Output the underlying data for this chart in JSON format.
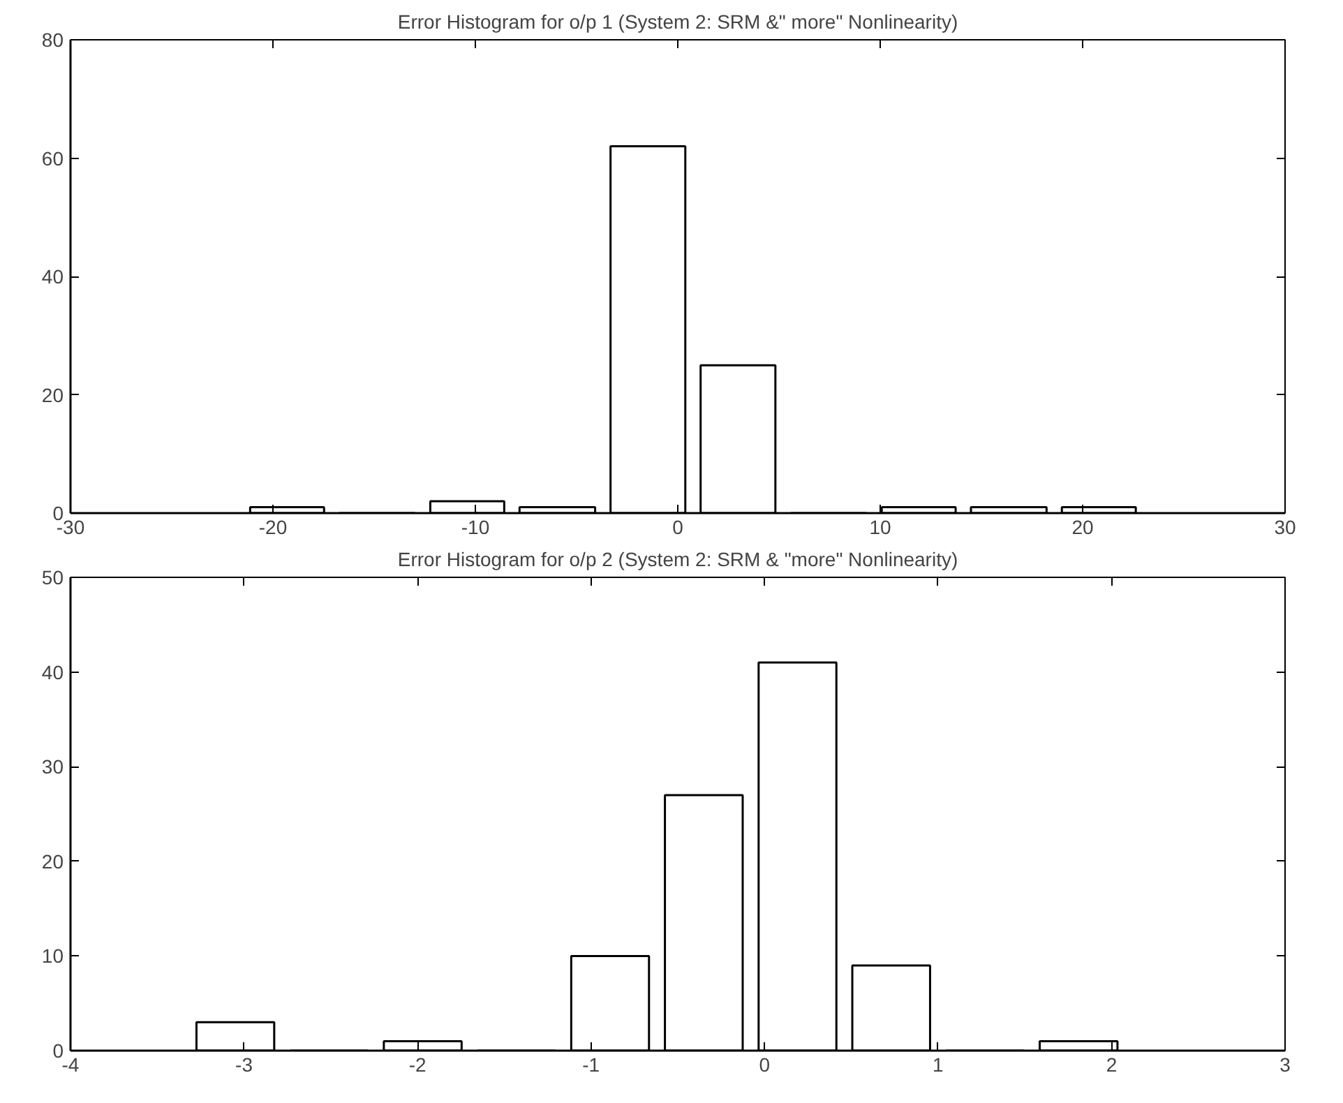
{
  "chart_data": [
    {
      "type": "histogram",
      "title": "Error Histogram for o/p 1 (System 2: SRM &\" more\" Nonlinearity)",
      "bins": [
        -21.5,
        -17.1,
        -12.6,
        -8.2,
        -3.7,
        0.75,
        5.2,
        9.7,
        14.1,
        18.6,
        23.0
      ],
      "values": [
        1,
        0,
        2,
        1,
        62,
        25,
        0,
        1,
        1,
        1
      ],
      "color": "#ffffff",
      "xlim": [
        -30,
        30
      ],
      "xticks": [
        -30,
        -20,
        -10,
        0,
        10,
        20,
        30
      ],
      "ylim": [
        0,
        80
      ],
      "yticks": [
        0,
        20,
        40,
        60,
        80
      ],
      "grid": false
    },
    {
      "type": "histogram",
      "title": "Error Histogram for o/p 2 (System 2: SRM & \"more\" Nonlinearity)",
      "bins": [
        -3.32,
        -2.78,
        -2.24,
        -1.7,
        -1.16,
        -0.62,
        -0.08,
        0.46,
        1.0,
        1.54,
        2.08
      ],
      "values": [
        3,
        0,
        1,
        0,
        10,
        27,
        41,
        9,
        0,
        1
      ],
      "color": "#ffffff",
      "xlim": [
        -4,
        3
      ],
      "xticks": [
        -4,
        -3,
        -2,
        -1,
        0,
        1,
        2,
        3
      ],
      "ylim": [
        0,
        50
      ],
      "yticks": [
        0,
        10,
        20,
        30,
        40,
        50
      ],
      "grid": false
    }
  ]
}
